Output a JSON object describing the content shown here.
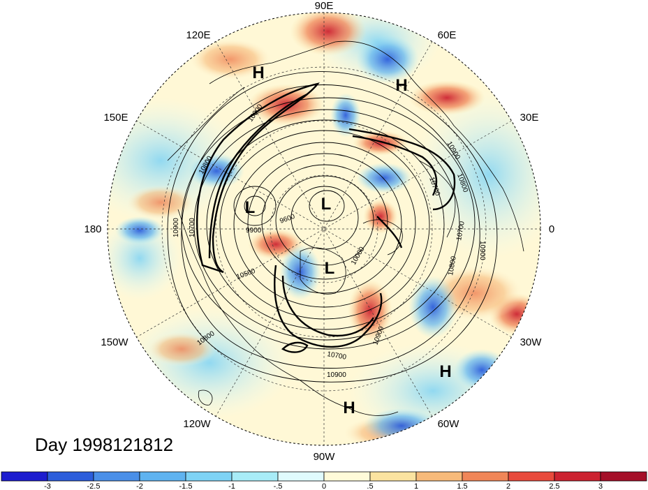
{
  "title": "Day 1998121812",
  "longitude_labels": [
    "90E",
    "60E",
    "30E",
    "0",
    "30W",
    "60W",
    "90W",
    "120W",
    "150W",
    "180",
    "150E",
    "120E"
  ],
  "pressure_centers": [
    {
      "label": "H",
      "region": "north-siberia"
    },
    {
      "label": "H",
      "region": "central-asia"
    },
    {
      "label": "L",
      "region": "east-siberia"
    },
    {
      "label": "L",
      "region": "pole"
    },
    {
      "label": "L",
      "region": "canadian-arctic"
    },
    {
      "label": "H",
      "region": "mid-atlantic"
    },
    {
      "label": "H",
      "region": "caribbean"
    }
  ],
  "contour_labels": [
    "10900",
    "10800",
    "10900",
    "10700",
    "9900",
    "9600",
    "10500",
    "10800",
    "10700",
    "10900",
    "10000",
    "10900",
    "10800",
    "10700",
    "10900",
    "10800",
    "10700",
    "10900"
  ],
  "colorbar": {
    "tick_labels": [
      "-3",
      "-2.5",
      "-2",
      "-1.5",
      "-1",
      "-.5",
      "0",
      ".5",
      "1",
      "1.5",
      "2",
      "2.5",
      "3"
    ],
    "colors": [
      "#1c1ccf",
      "#2c5ddb",
      "#4a8fe8",
      "#5fb3f0",
      "#7ed3f5",
      "#a8ecf7",
      "#e0fbfd",
      "#fffbd9",
      "#fbe3a0",
      "#f7ba7a",
      "#f08658",
      "#e84a3c",
      "#cc2230",
      "#a50f28"
    ]
  }
}
